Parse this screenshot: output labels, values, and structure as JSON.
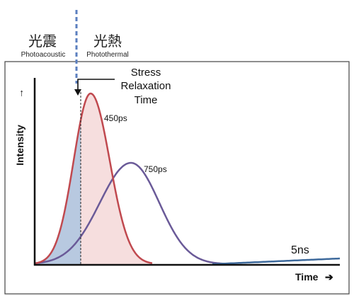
{
  "header": {
    "left_title": "光震",
    "left_subtitle": "Photoacoustic",
    "right_title": "光熱",
    "right_subtitle": "Photothermal"
  },
  "annotation": {
    "line1": "Stress",
    "line2": "Relaxation",
    "line3": "Time"
  },
  "axes": {
    "y_label": "Intensity",
    "y_arrow": "→",
    "x_label": "Time",
    "x_arrow": "➔"
  },
  "curves": {
    "short_label": "450ps",
    "long_label": "750ps",
    "tail_label": "5ns"
  },
  "colors": {
    "short_stroke": "#c0494f",
    "short_fill": "#f6dede",
    "long_stroke": "#6a5a98",
    "tail_stroke": "#3e6a9c",
    "acoustic_fill": "#b8c9e0",
    "divider_dash": "#5b7fbf",
    "frame": "#444444"
  }
}
